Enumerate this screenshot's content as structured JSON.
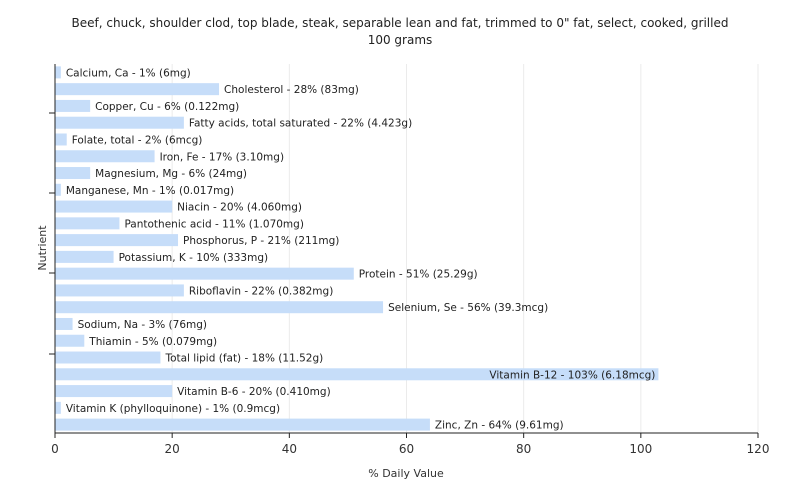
{
  "chart_data": {
    "type": "bar",
    "orientation": "horizontal",
    "title": "Beef, chuck, shoulder clod, top blade, steak, separable lean and fat, trimmed to 0\" fat, select, cooked, grilled",
    "subtitle": "100 grams",
    "xlabel": "% Daily Value",
    "ylabel": "Nutrient",
    "xlim": [
      0,
      120
    ],
    "xticks": [
      0,
      20,
      40,
      60,
      80,
      100,
      120
    ],
    "grid": true,
    "bar_color": "#c6ddf9",
    "categories": [
      "Calcium, Ca",
      "Cholesterol",
      "Copper, Cu",
      "Fatty acids, total saturated",
      "Folate, total",
      "Iron, Fe",
      "Magnesium, Mg",
      "Manganese, Mn",
      "Niacin",
      "Pantothenic acid",
      "Phosphorus, P",
      "Potassium, K",
      "Protein",
      "Riboflavin",
      "Selenium, Se",
      "Sodium, Na",
      "Thiamin",
      "Total lipid (fat)",
      "Vitamin B-12",
      "Vitamin B-6",
      "Vitamin K (phylloquinone)",
      "Zinc, Zn"
    ],
    "values": [
      1,
      28,
      6,
      22,
      2,
      17,
      6,
      1,
      20,
      11,
      21,
      10,
      51,
      22,
      56,
      3,
      5,
      18,
      103,
      20,
      1,
      64
    ],
    "labels": [
      "Calcium, Ca - 1% (6mg)",
      "Cholesterol - 28% (83mg)",
      "Copper, Cu - 6% (0.122mg)",
      "Fatty acids, total saturated - 22% (4.423g)",
      "Folate, total - 2% (6mcg)",
      "Iron, Fe - 17% (3.10mg)",
      "Magnesium, Mg - 6% (24mg)",
      "Manganese, Mn - 1% (0.017mg)",
      "Niacin - 20% (4.060mg)",
      "Pantothenic acid - 11% (1.070mg)",
      "Phosphorus, P - 21% (211mg)",
      "Potassium, K - 10% (333mg)",
      "Protein - 51% (25.29g)",
      "Riboflavin - 22% (0.382mg)",
      "Selenium, Se - 56% (39.3mcg)",
      "Sodium, Na - 3% (76mg)",
      "Thiamin - 5% (0.079mg)",
      "Total lipid (fat) - 18% (11.52g)",
      "Vitamin B-12 - 103% (6.18mcg)",
      "Vitamin B-6 - 20% (0.410mg)",
      "Vitamin K (phylloquinone) - 1% (0.9mcg)",
      "Zinc, Zn - 64% (9.61mg)"
    ]
  }
}
